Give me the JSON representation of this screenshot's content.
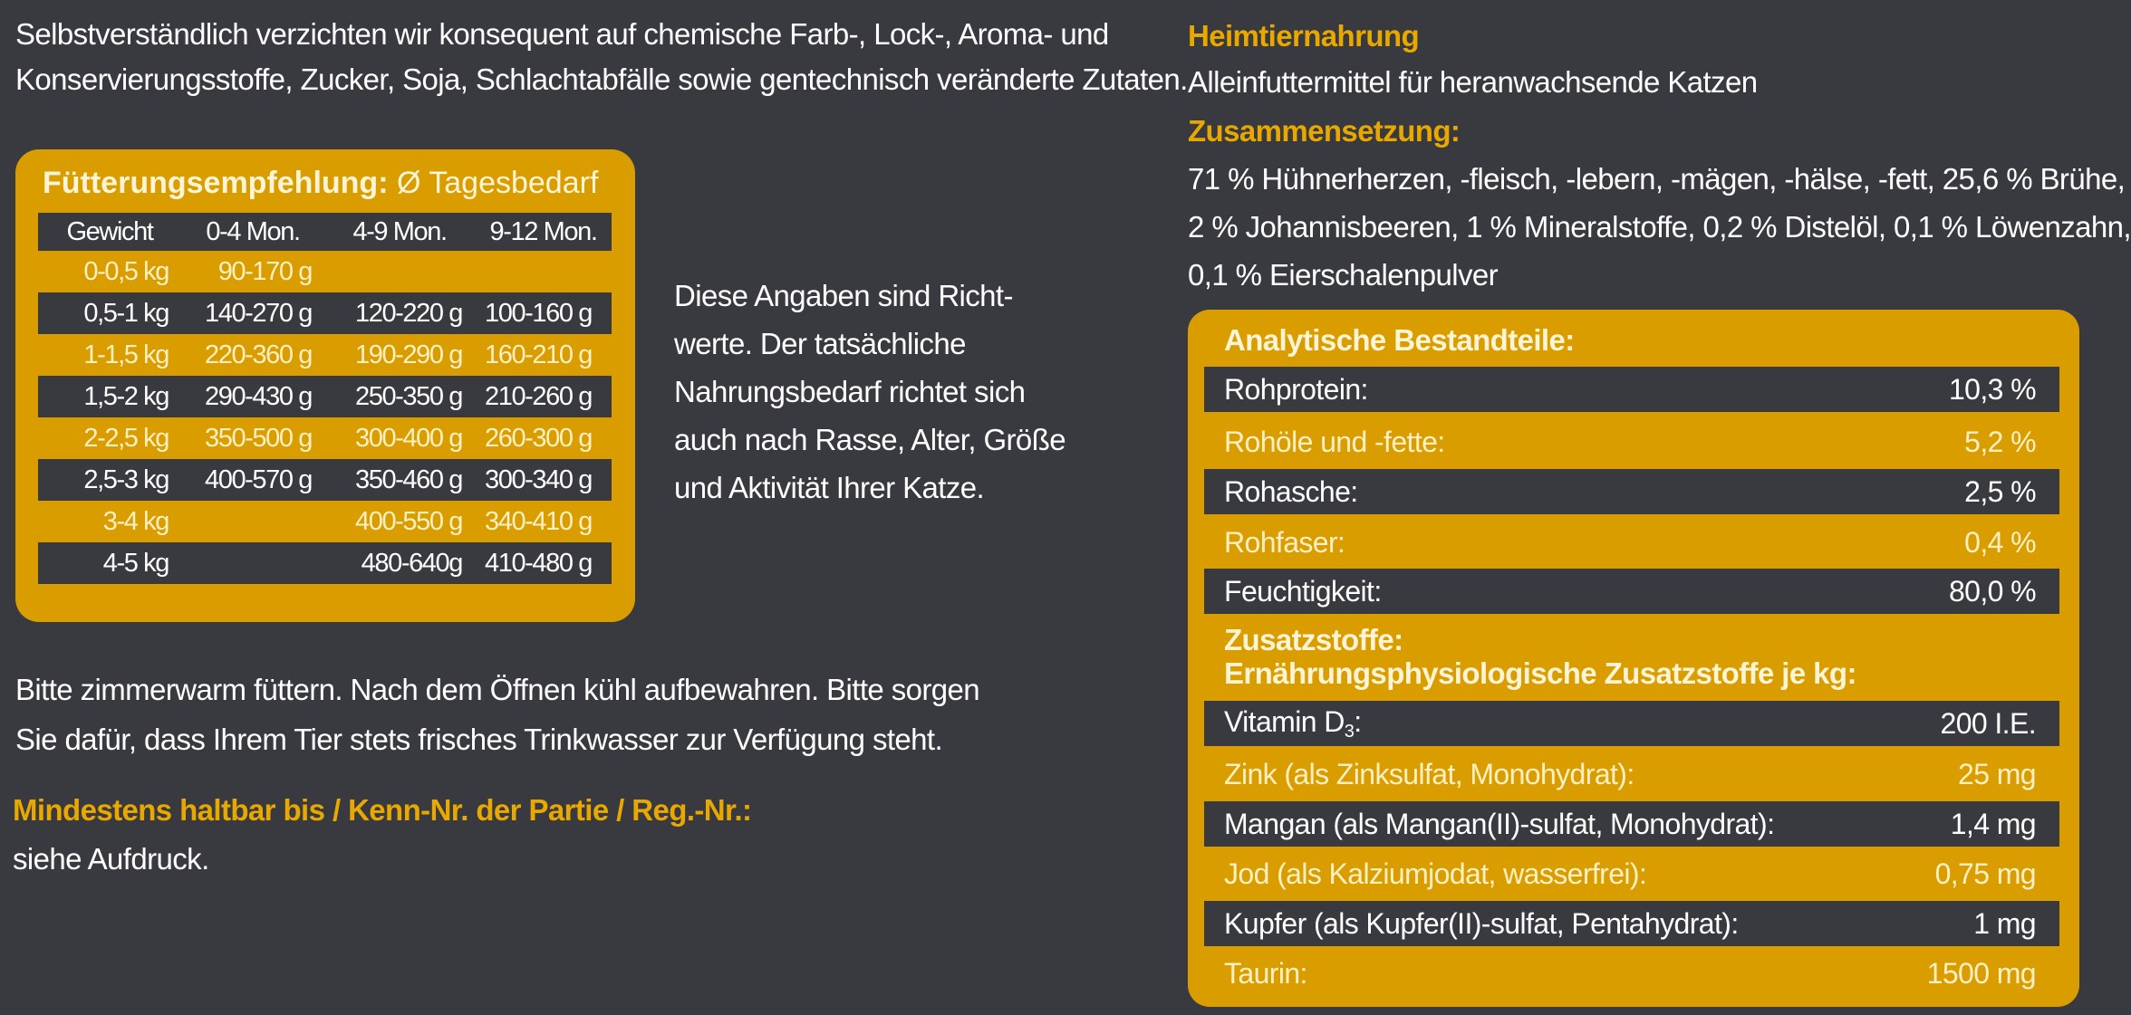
{
  "intro": {
    "line1": "Selbstverständlich verzichten wir konsequent auf chemische Farb-, Lock-, Aroma- und",
    "line2": "Konservierungsstoffe, Zucker, Soja, Schlachtabfälle sowie gentechnisch veränderte Zutaten."
  },
  "feeding": {
    "title_bold": "Fütterungsempfehlung:",
    "title_rest": " Ø Tagesbedarf",
    "headers": [
      "Gewicht",
      "0-4 Mon.",
      "4-9 Mon.",
      "9-12 Mon."
    ],
    "rows": [
      [
        "0-0,5 kg",
        "90-170 g",
        "",
        ""
      ],
      [
        "0,5-1 kg",
        "140-270 g",
        "120-220 g",
        "100-160 g"
      ],
      [
        "1-1,5 kg",
        "220-360 g",
        "190-290 g",
        "160-210 g"
      ],
      [
        "1,5-2 kg",
        "290-430 g",
        "250-350 g",
        "210-260 g"
      ],
      [
        "2-2,5 kg",
        "350-500 g",
        "300-400 g",
        "260-300 g"
      ],
      [
        "2,5-3 kg",
        "400-570 g",
        "350-460 g",
        "300-340 g"
      ],
      [
        "3-4 kg",
        "",
        "400-550 g",
        "340-410 g"
      ],
      [
        "4-5 kg",
        "",
        "480-640g",
        "410-480 g"
      ]
    ]
  },
  "note": {
    "lines": [
      "Diese Angaben sind Richt-",
      "werte. Der tatsächliche",
      "Nahrungsbedarf richtet sich",
      "auch nach Rasse, Alter, Größe",
      "und Aktivität Ihrer Katze."
    ]
  },
  "serving": {
    "line1": "Bitte zimmerwarm füttern. Nach dem Öffnen kühl aufbewahren. Bitte sorgen",
    "line2": "Sie dafür, dass Ihrem Tier stets frisches Trinkwasser zur Verfügung steht."
  },
  "best_before": {
    "heading": "Mindestens haltbar bis / Kenn-Nr. der Partie / Reg.-Nr.:",
    "text": "siehe Aufdruck."
  },
  "product": {
    "heading": "Heimtiernahrung",
    "subtitle": "Alleinfuttermittel für heranwachsende Katzen",
    "composition_heading": "Zusammensetzung:",
    "composition_lines": [
      "71 % Hühnerherzen, -fleisch, -lebern, -mägen, -hälse, -fett, 25,6 % Brühe,",
      "2 % Johannisbeeren, 1 % Mineralstoffe, 0,2 % Distelöl, 0,1 % Löwenzahn,",
      "0,1 % Eierschalenpulver"
    ]
  },
  "analysis": {
    "heading": "Analytische Bestandteile:",
    "rows": [
      {
        "label": "Rohprotein:",
        "value": "10,3 %"
      },
      {
        "label": "Rohöle und -fette:",
        "value": "5,2 %"
      },
      {
        "label": "Rohasche:",
        "value": "2,5 %"
      },
      {
        "label": "Rohfaser:",
        "value": "0,4 %"
      },
      {
        "label": "Feuchtigkeit:",
        "value": "80,0 %"
      }
    ],
    "additives_heading1": "Zusatzstoffe:",
    "additives_heading2": "Ernährungsphysiologische Zusatzstoffe je kg:",
    "vitamin_label": "Vitamin D",
    "vitamin_sub": "3",
    "vitamin_colon": ":",
    "vitamin_value": "200 I.E.",
    "additives": [
      {
        "label": "Zink (als Zinksulfat, Monohydrat):",
        "value": "25 mg"
      },
      {
        "label": "Mangan (als Mangan(II)-sulfat, Monohydrat):",
        "value": "1,4 mg"
      },
      {
        "label": "Jod (als Kalziumjodat, wasserfrei):",
        "value": "0,75 mg"
      },
      {
        "label": "Kupfer (als Kupfer(II)-sulfat, Pentahydrat):",
        "value": "1 mg"
      },
      {
        "label": "Taurin:",
        "value": "1500 mg"
      }
    ]
  }
}
